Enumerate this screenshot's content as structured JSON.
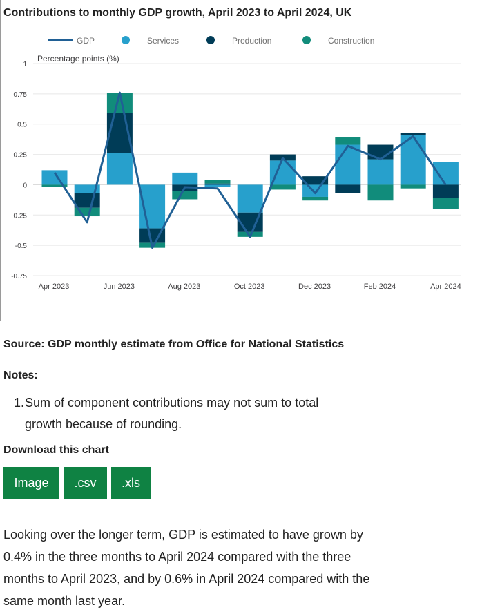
{
  "title": "Contributions to monthly GDP growth, April 2023 to April 2024, UK",
  "source": "Source: GDP monthly estimate from Office for National Statistics",
  "notes": {
    "heading": "Notes:",
    "items": [
      {
        "number": "1.",
        "text": "Sum of component contributions may not sum to total growth because of rounding."
      }
    ]
  },
  "download": {
    "heading": "Download this chart",
    "buttons": [
      {
        "label": "Image"
      },
      {
        "label": ".csv"
      },
      {
        "label": ".xls"
      }
    ]
  },
  "paragraph": "Looking over the longer term, GDP is estimated to have grown by 0.4% in the three months to April 2024 compared with the three months to April 2023, and by 0.6% in April 2024 compared with the same month last year.",
  "colors": {
    "gdp": "#206095",
    "services": "#27a0cc",
    "production": "#003c57",
    "construction": "#118c7b",
    "button": "#0f8243"
  },
  "chart_data": {
    "type": "bar",
    "stacked": true,
    "title": "Contributions to monthly GDP growth, April 2023 to April 2024, UK",
    "ylabel": "Percentage points (%)",
    "xlabel": "",
    "ylim": [
      -0.75,
      1
    ],
    "yticks": [
      1,
      0.75,
      0.5,
      0.25,
      0,
      -0.25,
      -0.5,
      -0.75
    ],
    "ytick_labels": [
      "1",
      "0.75",
      "0.5",
      "0.25",
      "0",
      "-0.25",
      "-0.5",
      "-0.75"
    ],
    "categories": [
      "Apr 2023",
      "May 2023",
      "Jun 2023",
      "Jul 2023",
      "Aug 2023",
      "Sep 2023",
      "Oct 2023",
      "Nov 2023",
      "Dec 2023",
      "Jan 2024",
      "Feb 2024",
      "Mar 2024",
      "Apr 2024"
    ],
    "xtick_labels": [
      "Apr 2023",
      "Jun 2023",
      "Aug 2023",
      "Oct 2023",
      "Dec 2023",
      "Feb 2024",
      "Apr 2024"
    ],
    "legend": [
      "GDP",
      "Services",
      "Production",
      "Construction"
    ],
    "series": [
      {
        "name": "Services",
        "type": "bar",
        "values": [
          0.12,
          -0.07,
          0.26,
          -0.36,
          0.1,
          -0.02,
          -0.23,
          0.2,
          -0.1,
          0.33,
          0.21,
          0.41,
          0.19
        ]
      },
      {
        "name": "Production",
        "type": "bar",
        "values": [
          0.0,
          -0.12,
          0.33,
          -0.12,
          -0.05,
          0.01,
          -0.16,
          0.05,
          0.07,
          -0.07,
          0.12,
          0.02,
          -0.11
        ]
      },
      {
        "name": "Construction",
        "type": "bar",
        "values": [
          -0.02,
          -0.07,
          0.17,
          -0.04,
          -0.07,
          0.03,
          -0.04,
          -0.04,
          -0.03,
          0.06,
          -0.13,
          -0.03,
          -0.09
        ]
      },
      {
        "name": "GDP",
        "type": "line",
        "values": [
          0.1,
          -0.31,
          0.76,
          -0.52,
          -0.02,
          -0.03,
          -0.43,
          0.22,
          -0.07,
          0.32,
          0.21,
          0.4,
          0.0
        ]
      }
    ]
  }
}
